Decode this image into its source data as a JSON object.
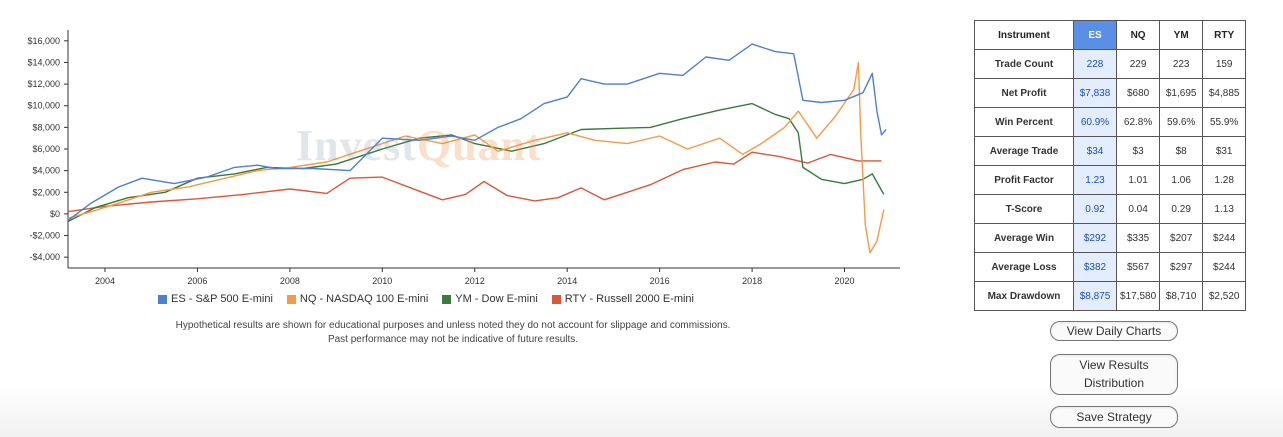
{
  "chart_data": {
    "type": "line",
    "title": "",
    "xlabel": "",
    "ylabel": "",
    "xlim": [
      2003.2,
      2021.2
    ],
    "ylim": [
      -5000,
      17000
    ],
    "x_ticks": [
      2004,
      2006,
      2008,
      2010,
      2012,
      2014,
      2016,
      2018,
      2020
    ],
    "y_ticks": [
      -4000,
      -2000,
      0,
      2000,
      4000,
      6000,
      8000,
      10000,
      12000,
      14000,
      16000
    ],
    "y_tick_labels": [
      "-$4,000",
      "-$2,000",
      "$0",
      "$2,000",
      "$4,000",
      "$6,000",
      "$8,000",
      "$10,000",
      "$12,000",
      "$14,000",
      "$16,000"
    ],
    "legend_position": "bottom",
    "series": [
      {
        "name": "ES - S&P 500 E-mini",
        "color": "#4f7fd0",
        "points": [
          [
            2003.2,
            -600
          ],
          [
            2003.7,
            1000
          ],
          [
            2004.3,
            2500
          ],
          [
            2004.8,
            3300
          ],
          [
            2005.5,
            2800
          ],
          [
            2006.2,
            3400
          ],
          [
            2006.8,
            4300
          ],
          [
            2007.3,
            4500
          ],
          [
            2007.7,
            4200
          ],
          [
            2008.5,
            4200
          ],
          [
            2009.3,
            4000
          ],
          [
            2010,
            7000
          ],
          [
            2010.8,
            6800
          ],
          [
            2011.5,
            7200
          ],
          [
            2012,
            6800
          ],
          [
            2012.5,
            8000
          ],
          [
            2013,
            8800
          ],
          [
            2013.5,
            10200
          ],
          [
            2014,
            10800
          ],
          [
            2014.3,
            12500
          ],
          [
            2014.8,
            12000
          ],
          [
            2015.3,
            12000
          ],
          [
            2016,
            13000
          ],
          [
            2016.5,
            12800
          ],
          [
            2017,
            14500
          ],
          [
            2017.5,
            14200
          ],
          [
            2018,
            15700
          ],
          [
            2018.5,
            15000
          ],
          [
            2018.9,
            14800
          ],
          [
            2019.1,
            10500
          ],
          [
            2019.5,
            10300
          ],
          [
            2020,
            10500
          ],
          [
            2020.4,
            11200
          ],
          [
            2020.6,
            13000
          ],
          [
            2020.7,
            9500
          ],
          [
            2020.8,
            7300
          ],
          [
            2020.9,
            7800
          ]
        ]
      },
      {
        "name": "NQ - NASDAQ 100 E-mini",
        "color": "#f59a48",
        "points": [
          [
            2003.2,
            -400
          ],
          [
            2003.7,
            200
          ],
          [
            2004.3,
            1000
          ],
          [
            2005,
            2000
          ],
          [
            2005.8,
            2500
          ],
          [
            2006.5,
            3200
          ],
          [
            2007.3,
            4000
          ],
          [
            2008,
            4300
          ],
          [
            2008.8,
            4800
          ],
          [
            2009.5,
            5800
          ],
          [
            2010,
            6500
          ],
          [
            2010.5,
            7200
          ],
          [
            2011.3,
            6500
          ],
          [
            2012,
            7300
          ],
          [
            2012.5,
            5800
          ],
          [
            2013.3,
            6800
          ],
          [
            2014,
            7500
          ],
          [
            2014.6,
            6800
          ],
          [
            2015.3,
            6500
          ],
          [
            2016,
            7200
          ],
          [
            2016.6,
            6000
          ],
          [
            2017.3,
            7000
          ],
          [
            2017.8,
            5500
          ],
          [
            2018.2,
            6500
          ],
          [
            2018.7,
            8000
          ],
          [
            2019,
            9500
          ],
          [
            2019.4,
            7000
          ],
          [
            2019.8,
            9000
          ],
          [
            2020.2,
            11500
          ],
          [
            2020.3,
            14000
          ],
          [
            2020.35,
            7500
          ],
          [
            2020.45,
            -1000
          ],
          [
            2020.55,
            -3600
          ],
          [
            2020.7,
            -2500
          ],
          [
            2020.85,
            400
          ]
        ]
      },
      {
        "name": "YM - Dow E-mini",
        "color": "#3a7a3a",
        "points": [
          [
            2003.2,
            -700
          ],
          [
            2003.8,
            600
          ],
          [
            2004.5,
            1500
          ],
          [
            2005.3,
            2000
          ],
          [
            2006,
            3300
          ],
          [
            2006.8,
            3700
          ],
          [
            2007.5,
            4300
          ],
          [
            2008.3,
            4200
          ],
          [
            2009,
            4600
          ],
          [
            2010,
            6000
          ],
          [
            2010.8,
            7000
          ],
          [
            2011.5,
            7300
          ],
          [
            2012,
            6500
          ],
          [
            2012.8,
            5800
          ],
          [
            2013.5,
            6500
          ],
          [
            2014.3,
            7800
          ],
          [
            2015,
            7900
          ],
          [
            2015.8,
            8000
          ],
          [
            2016.5,
            8800
          ],
          [
            2017.3,
            9600
          ],
          [
            2018,
            10200
          ],
          [
            2018.5,
            9200
          ],
          [
            2018.8,
            8800
          ],
          [
            2019,
            7500
          ],
          [
            2019.1,
            4300
          ],
          [
            2019.5,
            3200
          ],
          [
            2020,
            2800
          ],
          [
            2020.4,
            3200
          ],
          [
            2020.6,
            3700
          ],
          [
            2020.85,
            1800
          ]
        ]
      },
      {
        "name": "RTY - Russell 2000 E-mini",
        "color": "#d9573a",
        "points": [
          [
            2003.2,
            200
          ],
          [
            2004,
            700
          ],
          [
            2005,
            1100
          ],
          [
            2006,
            1400
          ],
          [
            2007,
            1800
          ],
          [
            2008,
            2300
          ],
          [
            2008.8,
            1900
          ],
          [
            2009.3,
            3300
          ],
          [
            2010,
            3400
          ],
          [
            2010.8,
            2100
          ],
          [
            2011.3,
            1300
          ],
          [
            2011.8,
            1800
          ],
          [
            2012.2,
            3000
          ],
          [
            2012.7,
            1700
          ],
          [
            2013.3,
            1200
          ],
          [
            2013.8,
            1500
          ],
          [
            2014.3,
            2400
          ],
          [
            2014.8,
            1300
          ],
          [
            2015.3,
            2000
          ],
          [
            2015.8,
            2700
          ],
          [
            2016.5,
            4100
          ],
          [
            2017.2,
            4800
          ],
          [
            2017.6,
            4600
          ],
          [
            2018,
            5700
          ],
          [
            2018.6,
            5300
          ],
          [
            2019.2,
            4700
          ],
          [
            2019.7,
            5500
          ],
          [
            2020.3,
            4900
          ],
          [
            2020.8,
            4900
          ]
        ]
      }
    ]
  },
  "legend": [
    {
      "label": "ES - S&P 500 E-mini",
      "color": "#4f7fd0"
    },
    {
      "label": "NQ - NASDAQ 100 E-mini",
      "color": "#f59a48"
    },
    {
      "label": "YM - Dow E-mini",
      "color": "#3a7a3a"
    },
    {
      "label": "RTY - Russell 2000 E-mini",
      "color": "#d9573a"
    }
  ],
  "watermark": {
    "part1": "Invest",
    "part2": "Quant"
  },
  "disclaimer": {
    "line1": "Hypothetical results are shown for educational purposes and unless noted they do not account for slippage and commissions.",
    "line2": "Past performance may not be indicative of future results."
  },
  "table": {
    "headers": [
      "Instrument",
      "ES",
      "NQ",
      "YM",
      "RTY"
    ],
    "rows": [
      {
        "label": "Trade Count",
        "values": [
          "228",
          "229",
          "223",
          "159"
        ]
      },
      {
        "label": "Net Profit",
        "values": [
          "$7,838",
          "$680",
          "$1,695",
          "$4,885"
        ]
      },
      {
        "label": "Win Percent",
        "values": [
          "60.9%",
          "62.8%",
          "59.6%",
          "55.9%"
        ]
      },
      {
        "label": "Average Trade",
        "values": [
          "$34",
          "$3",
          "$8",
          "$31"
        ]
      },
      {
        "label": "Profit Factor",
        "values": [
          "1.23",
          "1.01",
          "1.06",
          "1.28"
        ]
      },
      {
        "label": "T-Score",
        "values": [
          "0.92",
          "0.04",
          "0.29",
          "1.13"
        ]
      },
      {
        "label": "Average Win",
        "values": [
          "$292",
          "$335",
          "$207",
          "$244"
        ]
      },
      {
        "label": "Average Loss",
        "values": [
          "$382",
          "$567",
          "$297",
          "$244"
        ]
      },
      {
        "label": "Max Drawdown",
        "values": [
          "$8,875",
          "$17,580",
          "$8,710",
          "$2,520"
        ]
      }
    ]
  },
  "buttons": {
    "daily_charts": "View Daily Charts",
    "results_line1": "View Results",
    "results_line2": "Distribution",
    "save": "Save Strategy"
  }
}
